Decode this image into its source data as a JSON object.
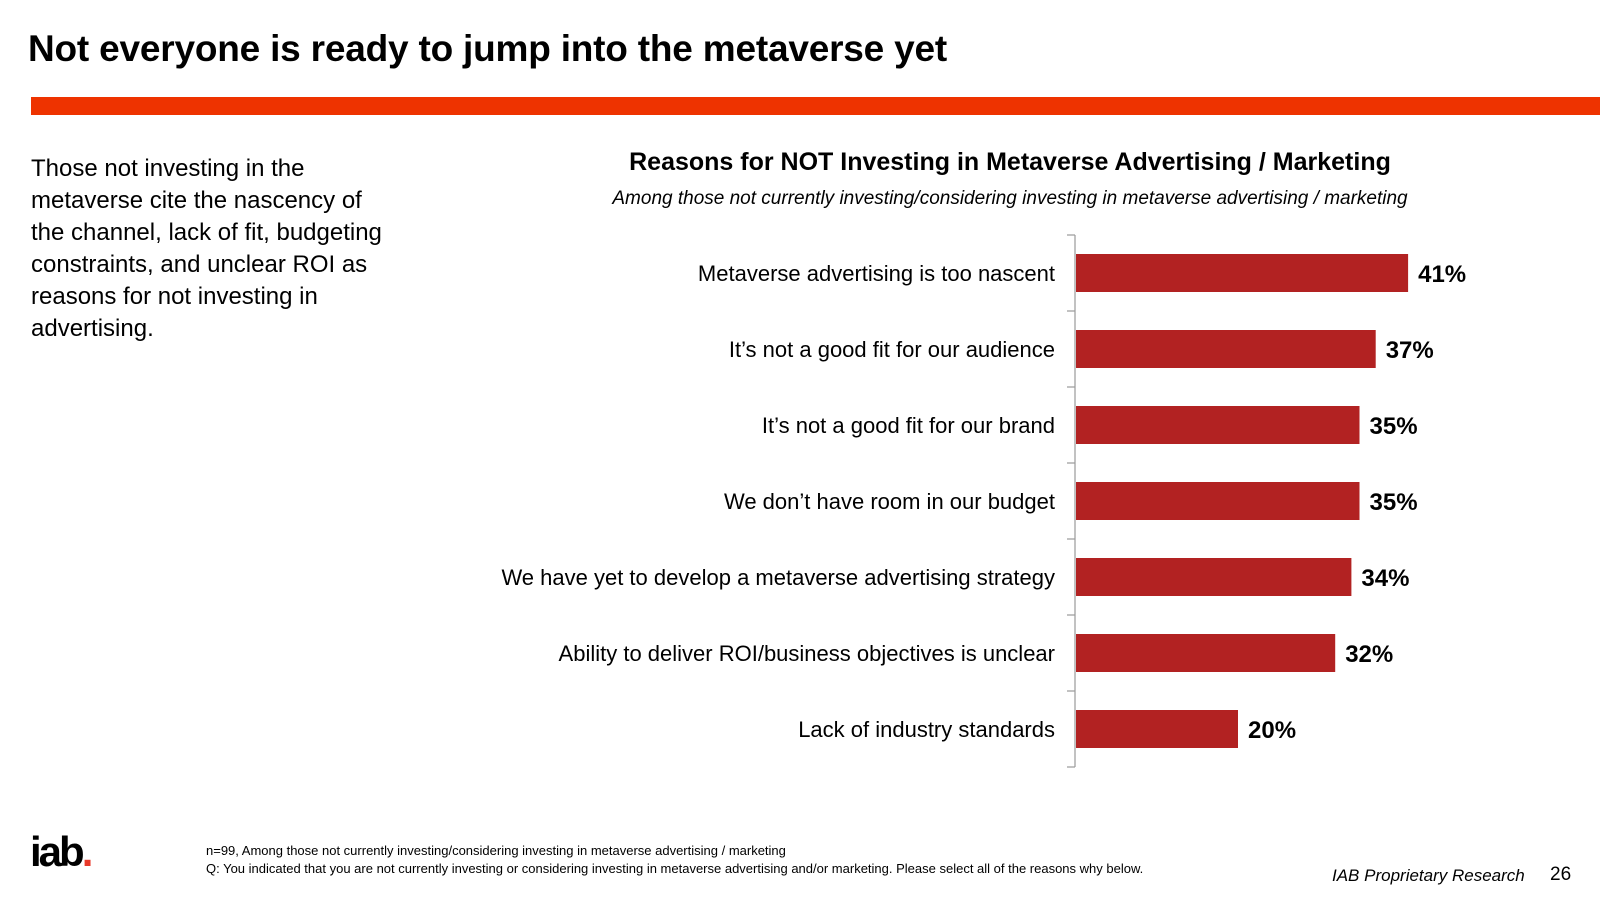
{
  "slide": {
    "title": "Not everyone is ready to jump into the metaverse yet",
    "summary": "Those not investing in the metaverse cite the nascency of the channel, lack of fit, budgeting constraints, and unclear ROI as reasons for not investing in advertising.",
    "accent_color": "#ee3300"
  },
  "chart_data": {
    "type": "bar",
    "orientation": "horizontal",
    "title": "Reasons for NOT Investing in Metaverse Advertising / Marketing",
    "subtitle": "Among those not currently investing/considering investing in metaverse advertising / marketing",
    "categories": [
      "Metaverse advertising is too nascent",
      "It’s not a good fit for our audience",
      "It’s not a good fit for our brand",
      "We don’t have room in our budget",
      "We have yet to develop a metaverse advertising strategy",
      "Ability to deliver ROI/business objectives is unclear",
      "Lack of industry standards"
    ],
    "values": [
      41,
      37,
      35,
      35,
      34,
      32,
      20
    ],
    "value_labels": [
      "41%",
      "37%",
      "35%",
      "35%",
      "34%",
      "32%",
      "20%"
    ],
    "unit": "%",
    "xlim": [
      0,
      100
    ],
    "grid": false,
    "legend": "none",
    "bar_color": "#b22222"
  },
  "footer": {
    "logo_text": "iab",
    "logo_dot": ".",
    "note_1": "n=99, Among those not currently investing/considering investing in metaverse advertising / marketing",
    "note_2": "Q: You indicated that you are not currently investing or considering investing in metaverse advertising and/or marketing. Please select all of the reasons why below.",
    "credit": "IAB Proprietary Research",
    "page_number": "26",
    "logo_dot_color": "#e8392a"
  }
}
